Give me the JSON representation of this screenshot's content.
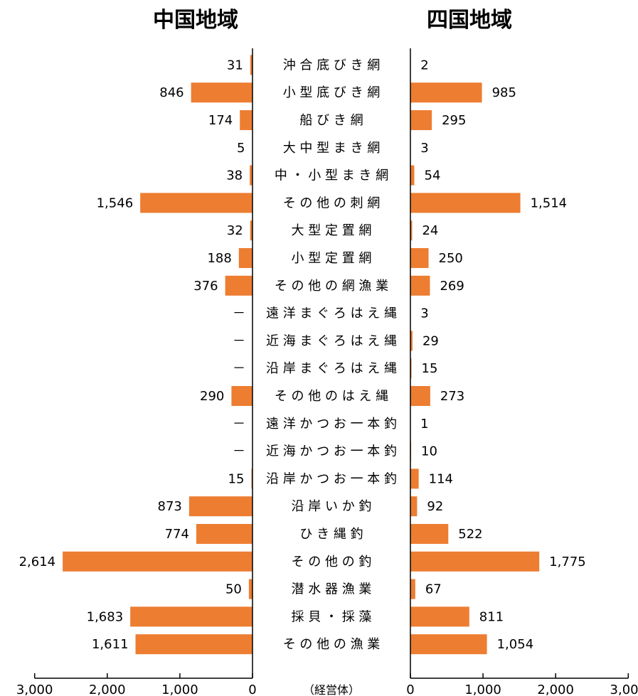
{
  "chart_data": {
    "type": "bar",
    "orientation": "horizontal",
    "layout": "butterfly",
    "unit_label": "（経営体）",
    "categories": [
      "沖 合 底 び き 網",
      "小 型 底 び き 網",
      "船 び き 網",
      "大 中 型 ま き 網",
      "中 ・ 小 型 ま き 網",
      "そ の 他 の 刺 網",
      "大 型 定 置 網",
      "小 型 定 置 網",
      "そ の 他 の 網 漁 業",
      "遠 洋 ま ぐ ろ は え 縄",
      "近 海 ま ぐ ろ は え 縄",
      "沿 岸 ま ぐ ろ は え 縄",
      "そ の 他 の は え 縄",
      "遠 洋 か つ お 一 本 釣",
      "近 海 か つ お 一 本 釣",
      "沿 岸 か つ お 一 本 釣",
      "沿 岸 い か 釣",
      "ひ き 縄 釣",
      "そ の 他 の 釣",
      "潜 水 器 漁 業",
      "採 貝 ・ 採 藻",
      "そ の 他 の 漁 業"
    ],
    "series": [
      {
        "name": "中国地域",
        "side": "left",
        "values": [
          31,
          846,
          174,
          5,
          38,
          1546,
          32,
          188,
          376,
          null,
          null,
          null,
          290,
          null,
          null,
          15,
          873,
          774,
          2614,
          50,
          1683,
          1611
        ],
        "labels": [
          "31",
          "846",
          "174",
          "5",
          "38",
          "1,546",
          "32",
          "188",
          "376",
          "－",
          "－",
          "－",
          "290",
          "－",
          "－",
          "15",
          "873",
          "774",
          "2,614",
          "50",
          "1,683",
          "1,611"
        ]
      },
      {
        "name": "四国地域",
        "side": "right",
        "values": [
          2,
          985,
          295,
          3,
          54,
          1514,
          24,
          250,
          269,
          3,
          29,
          15,
          273,
          1,
          10,
          114,
          92,
          522,
          1775,
          67,
          811,
          1054
        ],
        "labels": [
          "2",
          "985",
          "295",
          "3",
          "54",
          "1,514",
          "24",
          "250",
          "269",
          "3",
          "29",
          "15",
          "273",
          "1",
          "10",
          "114",
          "92",
          "522",
          "1,775",
          "67",
          "811",
          "1,054"
        ]
      }
    ],
    "xlim": [
      0,
      3000
    ],
    "ticks": [
      0,
      1000,
      2000,
      3000
    ],
    "tick_labels_left": [
      "0",
      "1,000",
      "2,000",
      "3,000"
    ],
    "tick_labels_right": [
      "0",
      "1,000",
      "2,000",
      "3,000"
    ],
    "colors": {
      "bar": "#ED7D31",
      "axis": "#000000"
    },
    "grid": false
  }
}
